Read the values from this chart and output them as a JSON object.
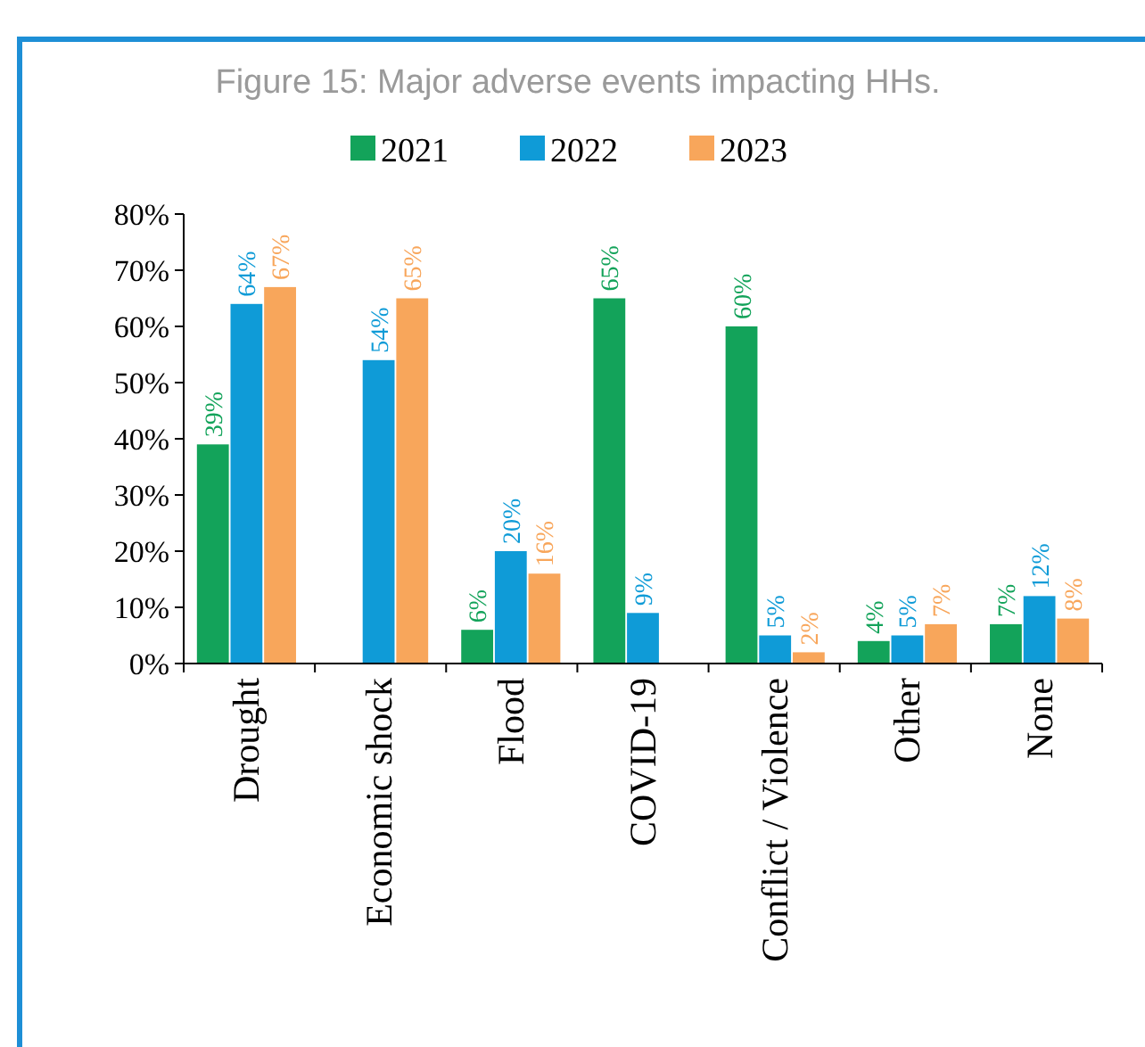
{
  "chart_data": {
    "type": "bar",
    "title": "Figure 15: Major adverse events impacting HHs.",
    "categories": [
      "Drought",
      "Economic shock",
      "Flood",
      "COVID-19",
      "Conflict / Violence",
      "Other",
      "None"
    ],
    "series": [
      {
        "name": "2021",
        "color": "#13a35a",
        "values": [
          39,
          null,
          6,
          65,
          60,
          4,
          7
        ]
      },
      {
        "name": "2022",
        "color": "#0f9bd7",
        "values": [
          64,
          54,
          20,
          9,
          5,
          5,
          12
        ]
      },
      {
        "name": "2023",
        "color": "#f8a65b",
        "values": [
          67,
          65,
          16,
          null,
          2,
          7,
          8
        ]
      }
    ],
    "value_labels": [
      [
        "39%",
        null,
        "6%",
        "65%",
        "60%",
        "4%",
        "7%"
      ],
      [
        "64%",
        "54%",
        "20%",
        "9%",
        "5%",
        "5%",
        "12%"
      ],
      [
        "67%",
        "65%",
        "16%",
        null,
        "2%",
        "7%",
        "8%"
      ]
    ],
    "ylim": [
      0,
      80
    ],
    "yticks": [
      {
        "value": 0,
        "label": "0%"
      },
      {
        "value": 10,
        "label": "10%"
      },
      {
        "value": 20,
        "label": "20%"
      },
      {
        "value": 30,
        "label": "30%"
      },
      {
        "value": 40,
        "label": "40%"
      },
      {
        "value": 50,
        "label": "50%"
      },
      {
        "value": 60,
        "label": "60%"
      },
      {
        "value": 70,
        "label": "70%"
      },
      {
        "value": 80,
        "label": "80%"
      }
    ],
    "legend": "top"
  }
}
